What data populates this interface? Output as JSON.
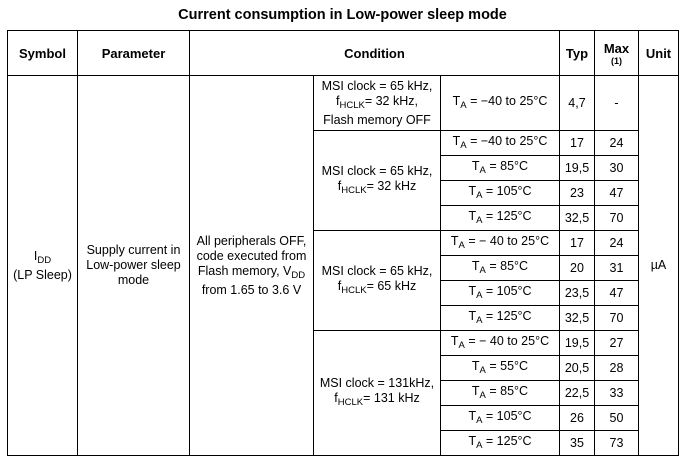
{
  "title": "Current consumption in Low-power sleep mode",
  "headers": {
    "symbol": "Symbol",
    "parameter": "Parameter",
    "condition": "Condition",
    "typ": "Typ",
    "max": "Max",
    "max_note": "(1)",
    "unit": "Unit"
  },
  "symbol": {
    "main": "I",
    "sub": "DD",
    "note": "(LP Sleep)"
  },
  "parameter": "Supply current in Low-power sleep mode",
  "condition_main": {
    "line1": "All peripherals OFF, code executed from Flash memory, V",
    "sub": "DD",
    "line2": " from 1.65 to 3.6 V"
  },
  "unit": "µA",
  "groups": [
    {
      "clock": "MSI clock = 65 kHz,",
      "hclk_prefix": "f",
      "hclk_sub": "HCLK",
      "hclk_value": "= 32 kHz,",
      "extra": "Flash memory OFF",
      "rows": [
        {
          "ta": "= −40 to 25°C",
          "typ": "4,7",
          "max": "-"
        }
      ]
    },
    {
      "clock": "MSI clock = 65 kHz,",
      "hclk_prefix": "f",
      "hclk_sub": "HCLK",
      "hclk_value": "= 32 kHz",
      "rows": [
        {
          "ta": "= −40 to 25°C",
          "typ": "17",
          "max": "24"
        },
        {
          "ta": "= 85°C",
          "typ": "19,5",
          "max": "30"
        },
        {
          "ta": "= 105°C",
          "typ": "23",
          "max": "47"
        },
        {
          "ta": "= 125°C",
          "typ": "32,5",
          "max": "70"
        }
      ]
    },
    {
      "clock": "MSI clock = 65 kHz,",
      "hclk_prefix": "f",
      "hclk_sub": "HCLK",
      "hclk_value": "= 65 kHz",
      "rows": [
        {
          "ta": "= − 40 to 25°C",
          "typ": "17",
          "max": "24"
        },
        {
          "ta": "= 85°C",
          "typ": "20",
          "max": "31"
        },
        {
          "ta": "= 105°C",
          "typ": "23,5",
          "max": "47"
        },
        {
          "ta": "= 125°C",
          "typ": "32,5",
          "max": "70"
        }
      ]
    },
    {
      "clock": "MSI clock = 131kHz,",
      "hclk_prefix": "f",
      "hclk_sub": "HCLK",
      "hclk_value": "= 131 kHz",
      "rows": [
        {
          "ta": "= − 40 to 25°C",
          "typ": "19,5",
          "max": "27"
        },
        {
          "ta": "= 55°C",
          "typ": "20,5",
          "max": "28"
        },
        {
          "ta": "= 85°C",
          "typ": "22,5",
          "max": "33"
        },
        {
          "ta": "= 105°C",
          "typ": "26",
          "max": "50"
        },
        {
          "ta": "= 125°C",
          "typ": "35",
          "max": "73"
        }
      ]
    }
  ]
}
